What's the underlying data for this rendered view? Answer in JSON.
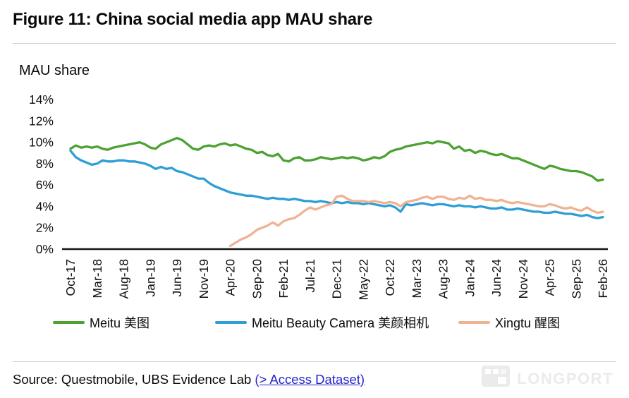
{
  "figure_title": "Figure 11: China social media app MAU share",
  "chart_data": {
    "type": "line",
    "title": "Figure 11: China social media app MAU share",
    "ylabel": "MAU share",
    "ylim": [
      0,
      14
    ],
    "y_tick_labels": [
      "0%",
      "2%",
      "4%",
      "6%",
      "8%",
      "10%",
      "12%",
      "14%"
    ],
    "x_unit": "month",
    "x_start": "Oct-17",
    "x_end": "Feb-26",
    "x_tick_every_n_months": 5,
    "x_tick_labels": [
      "Oct-17",
      "Mar-18",
      "Aug-18",
      "Jan-19",
      "Jun-19",
      "Nov-19",
      "Apr-20",
      "Sep-20",
      "Feb-21",
      "Jul-21",
      "Dec-21",
      "May-22",
      "Oct-22",
      "Mar-23",
      "Aug-23",
      "Jan-24",
      "Jun-24",
      "Nov-24",
      "Apr-25",
      "Sep-25",
      "Feb-26"
    ],
    "grid": false,
    "legend_position": "bottom",
    "unit": "percent",
    "series": [
      {
        "name": "Meitu 美图",
        "slug": "meitu",
        "color": "#4ba232",
        "values": [
          9.4,
          9.7,
          9.5,
          9.6,
          9.5,
          9.6,
          9.4,
          9.3,
          9.5,
          9.6,
          9.7,
          9.8,
          9.9,
          10.0,
          9.8,
          9.5,
          9.4,
          9.8,
          10.0,
          10.2,
          10.4,
          10.2,
          9.8,
          9.4,
          9.3,
          9.6,
          9.7,
          9.6,
          9.8,
          9.9,
          9.7,
          9.8,
          9.6,
          9.4,
          9.3,
          9.0,
          9.1,
          8.8,
          8.7,
          8.9,
          8.3,
          8.2,
          8.5,
          8.6,
          8.3,
          8.3,
          8.4,
          8.6,
          8.5,
          8.4,
          8.5,
          8.6,
          8.5,
          8.6,
          8.5,
          8.3,
          8.4,
          8.6,
          8.5,
          8.7,
          9.1,
          9.3,
          9.4,
          9.6,
          9.7,
          9.8,
          9.9,
          10.0,
          9.9,
          10.1,
          10.0,
          9.9,
          9.4,
          9.6,
          9.2,
          9.3,
          9.0,
          9.2,
          9.1,
          8.9,
          8.8,
          8.9,
          8.7,
          8.5,
          8.5,
          8.3,
          8.1,
          7.9,
          7.7,
          7.5,
          7.8,
          7.7,
          7.5,
          7.4,
          7.3,
          7.3,
          7.2,
          7.0,
          6.8,
          6.4,
          6.5
        ]
      },
      {
        "name": "Meitu Beauty Camera 美颜相机",
        "slug": "meitu-beauty-camera",
        "color": "#2d9ed6",
        "values": [
          9.2,
          8.6,
          8.3,
          8.1,
          7.9,
          8.0,
          8.3,
          8.2,
          8.2,
          8.3,
          8.3,
          8.2,
          8.2,
          8.1,
          8.0,
          7.8,
          7.5,
          7.7,
          7.5,
          7.6,
          7.3,
          7.2,
          7.0,
          6.8,
          6.6,
          6.6,
          6.2,
          5.9,
          5.7,
          5.5,
          5.3,
          5.2,
          5.1,
          5.0,
          5.0,
          4.9,
          4.8,
          4.7,
          4.8,
          4.7,
          4.7,
          4.6,
          4.7,
          4.6,
          4.5,
          4.5,
          4.4,
          4.5,
          4.4,
          4.3,
          4.4,
          4.3,
          4.4,
          4.3,
          4.3,
          4.2,
          4.3,
          4.2,
          4.1,
          4.0,
          4.1,
          3.9,
          3.5,
          4.2,
          4.1,
          4.2,
          4.3,
          4.2,
          4.1,
          4.2,
          4.2,
          4.1,
          4.0,
          4.1,
          4.0,
          4.0,
          3.9,
          4.0,
          3.9,
          3.8,
          3.8,
          3.9,
          3.7,
          3.7,
          3.8,
          3.7,
          3.6,
          3.5,
          3.5,
          3.4,
          3.4,
          3.5,
          3.4,
          3.3,
          3.3,
          3.2,
          3.1,
          3.2,
          3.0,
          2.9,
          3.0
        ]
      },
      {
        "name": "Xingtu 醒图",
        "slug": "xingtu",
        "color": "#f1b294",
        "values": [
          null,
          null,
          null,
          null,
          null,
          null,
          null,
          null,
          null,
          null,
          null,
          null,
          null,
          null,
          null,
          null,
          null,
          null,
          null,
          null,
          null,
          null,
          null,
          null,
          null,
          null,
          null,
          null,
          null,
          null,
          0.3,
          0.6,
          0.9,
          1.1,
          1.4,
          1.8,
          2.0,
          2.2,
          2.5,
          2.2,
          2.6,
          2.8,
          2.9,
          3.2,
          3.6,
          3.9,
          3.7,
          3.9,
          4.1,
          4.2,
          4.9,
          5.0,
          4.7,
          4.5,
          4.5,
          4.5,
          4.4,
          4.5,
          4.4,
          4.3,
          4.4,
          4.3,
          4.0,
          4.4,
          4.5,
          4.6,
          4.8,
          4.9,
          4.7,
          4.9,
          4.9,
          4.7,
          4.6,
          4.8,
          4.7,
          5.0,
          4.7,
          4.8,
          4.6,
          4.6,
          4.5,
          4.6,
          4.4,
          4.3,
          4.4,
          4.3,
          4.2,
          4.1,
          4.0,
          4.0,
          4.2,
          4.1,
          3.9,
          3.8,
          3.9,
          3.7,
          3.6,
          3.9,
          3.6,
          3.4,
          3.5
        ]
      }
    ]
  },
  "footer": {
    "source_prefix": "Source: Questmobile, UBS Evidence Lab",
    "dataset_link": "(> Access Dataset)",
    "watermark": "LONGPORT"
  }
}
